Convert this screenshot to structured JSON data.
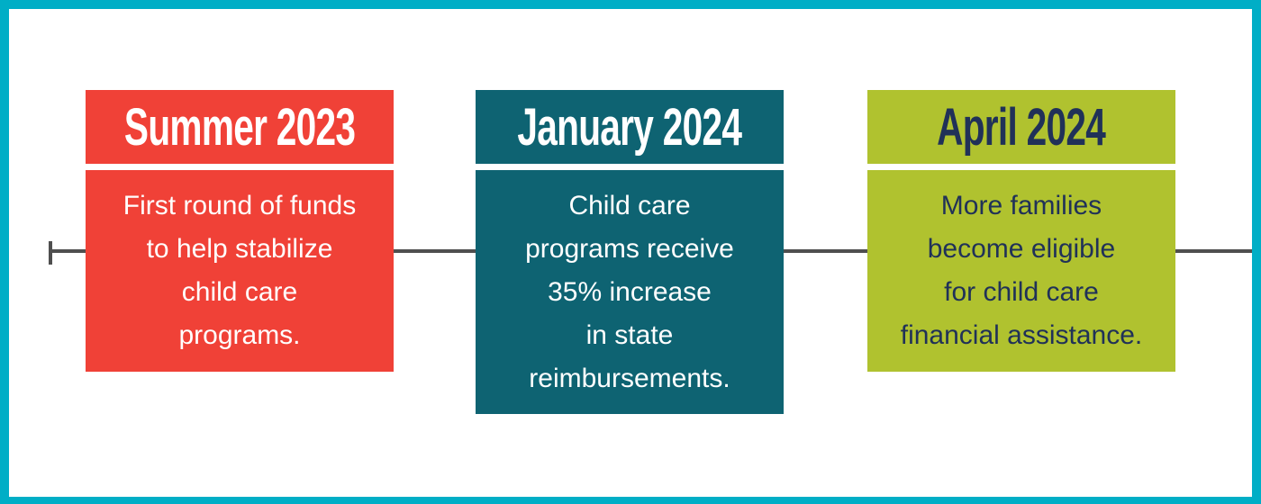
{
  "infographic": {
    "type": "timeline",
    "frame_border_color": "#00aec6",
    "timeline_line_color": "#4f4f4f",
    "events": [
      {
        "date": "Summer 2023",
        "description": "First round of funds\nto help stabilize\nchild care\nprograms.",
        "card_color": "#f04137",
        "text_color": "#ffffff"
      },
      {
        "date": "January 2024",
        "description": "Child care\nprograms receive\n35% increase\nin state\nreimbursements.",
        "card_color": "#0e6372",
        "text_color": "#ffffff"
      },
      {
        "date": "April 2024",
        "description": "More families\nbecome eligible\nfor child care\nfinancial assistance.",
        "card_color": "#b0c22f",
        "text_color": "#203158"
      }
    ]
  }
}
